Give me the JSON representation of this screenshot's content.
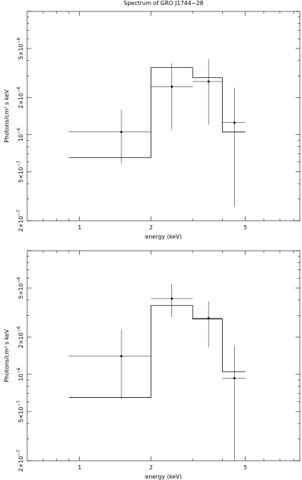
{
  "chart_data": [
    {
      "type": "line",
      "render": "step-histogram-with-error-bars",
      "title": "Spectrum of GRO J1744−28",
      "xlabel": "energy (keV)",
      "ylabel": "Photons/cm² s keV",
      "xscale": "log",
      "yscale": "log",
      "xlim": [
        0.6,
        8.5
      ],
      "ylim": [
        2e-07,
        1e-05
      ],
      "xticks": [
        {
          "v": 1,
          "label": "1"
        },
        {
          "v": 2,
          "label": "2"
        },
        {
          "v": 5,
          "label": "5"
        }
      ],
      "yticks": [
        {
          "v": 2e-07,
          "mant": "2×10",
          "exp": "−7"
        },
        {
          "v": 5e-07,
          "mant": "5×10",
          "exp": "−7"
        },
        {
          "v": 1e-06,
          "mant": "10",
          "exp": "−6"
        },
        {
          "v": 2e-06,
          "mant": "2×10",
          "exp": "−6"
        },
        {
          "v": 5e-06,
          "mant": "5×10",
          "exp": "−6"
        }
      ],
      "model": {
        "edges": [
          0.9,
          2.0,
          3.0,
          4.0,
          5.0
        ],
        "values": [
          6.5e-07,
          3.5e-06,
          2.9e-06,
          1.05e-06
        ]
      },
      "observed": [
        {
          "x": 1.5,
          "xlo": 0.9,
          "xhi": 2.0,
          "y": 1.05e-06,
          "ylo": 5.8e-07,
          "yhi": 1.6e-06
        },
        {
          "x": 2.45,
          "xlo": 2.0,
          "xhi": 3.0,
          "y": 2.45e-06,
          "ylo": 1.1e-06,
          "yhi": 3.8e-06
        },
        {
          "x": 3.5,
          "xlo": 3.0,
          "xhi": 4.0,
          "y": 2.7e-06,
          "ylo": 1.2e-06,
          "yhi": 4.1e-06
        },
        {
          "x": 4.5,
          "xlo": 4.0,
          "xhi": 5.0,
          "y": 1.25e-06,
          "ylo": 2.6e-07,
          "yhi": 2.4e-06
        }
      ]
    },
    {
      "type": "line",
      "render": "step-histogram-with-error-bars",
      "title": "",
      "xlabel": "energy (keV)",
      "ylabel": "Photons/cm² s keV",
      "xscale": "log",
      "yscale": "log",
      "xlim": [
        0.6,
        8.5
      ],
      "ylim": [
        2e-07,
        1e-05
      ],
      "xticks": [
        {
          "v": 1,
          "label": "1"
        },
        {
          "v": 2,
          "label": "2"
        },
        {
          "v": 5,
          "label": "5"
        }
      ],
      "yticks": [
        {
          "v": 2e-07,
          "mant": "2×10",
          "exp": "−7"
        },
        {
          "v": 5e-07,
          "mant": "5×10",
          "exp": "−7"
        },
        {
          "v": 1e-06,
          "mant": "10",
          "exp": "−6"
        },
        {
          "v": 2e-06,
          "mant": "2×10",
          "exp": "−6"
        },
        {
          "v": 5e-06,
          "mant": "5×10",
          "exp": "−6"
        }
      ],
      "model": {
        "edges": [
          0.9,
          2.0,
          3.0,
          4.0,
          5.0
        ],
        "values": [
          6.5e-07,
          3.6e-06,
          2.8e-06,
          1.05e-06
        ]
      },
      "observed": [
        {
          "x": 1.5,
          "xlo": 0.9,
          "xhi": 2.0,
          "y": 1.4e-06,
          "ylo": 6.3e-07,
          "yhi": 2.3e-06
        },
        {
          "x": 2.45,
          "xlo": 2.0,
          "xhi": 3.0,
          "y": 4.1e-06,
          "ylo": 2.9e-06,
          "yhi": 5.4e-06
        },
        {
          "x": 3.5,
          "xlo": 3.0,
          "xhi": 4.0,
          "y": 2.85e-06,
          "ylo": 1.65e-06,
          "yhi": 3.9e-06
        },
        {
          "x": 4.5,
          "xlo": 4.0,
          "xhi": 5.0,
          "y": 9.3e-07,
          "ylo": 2e-07,
          "yhi": 1.7e-06
        }
      ]
    }
  ]
}
